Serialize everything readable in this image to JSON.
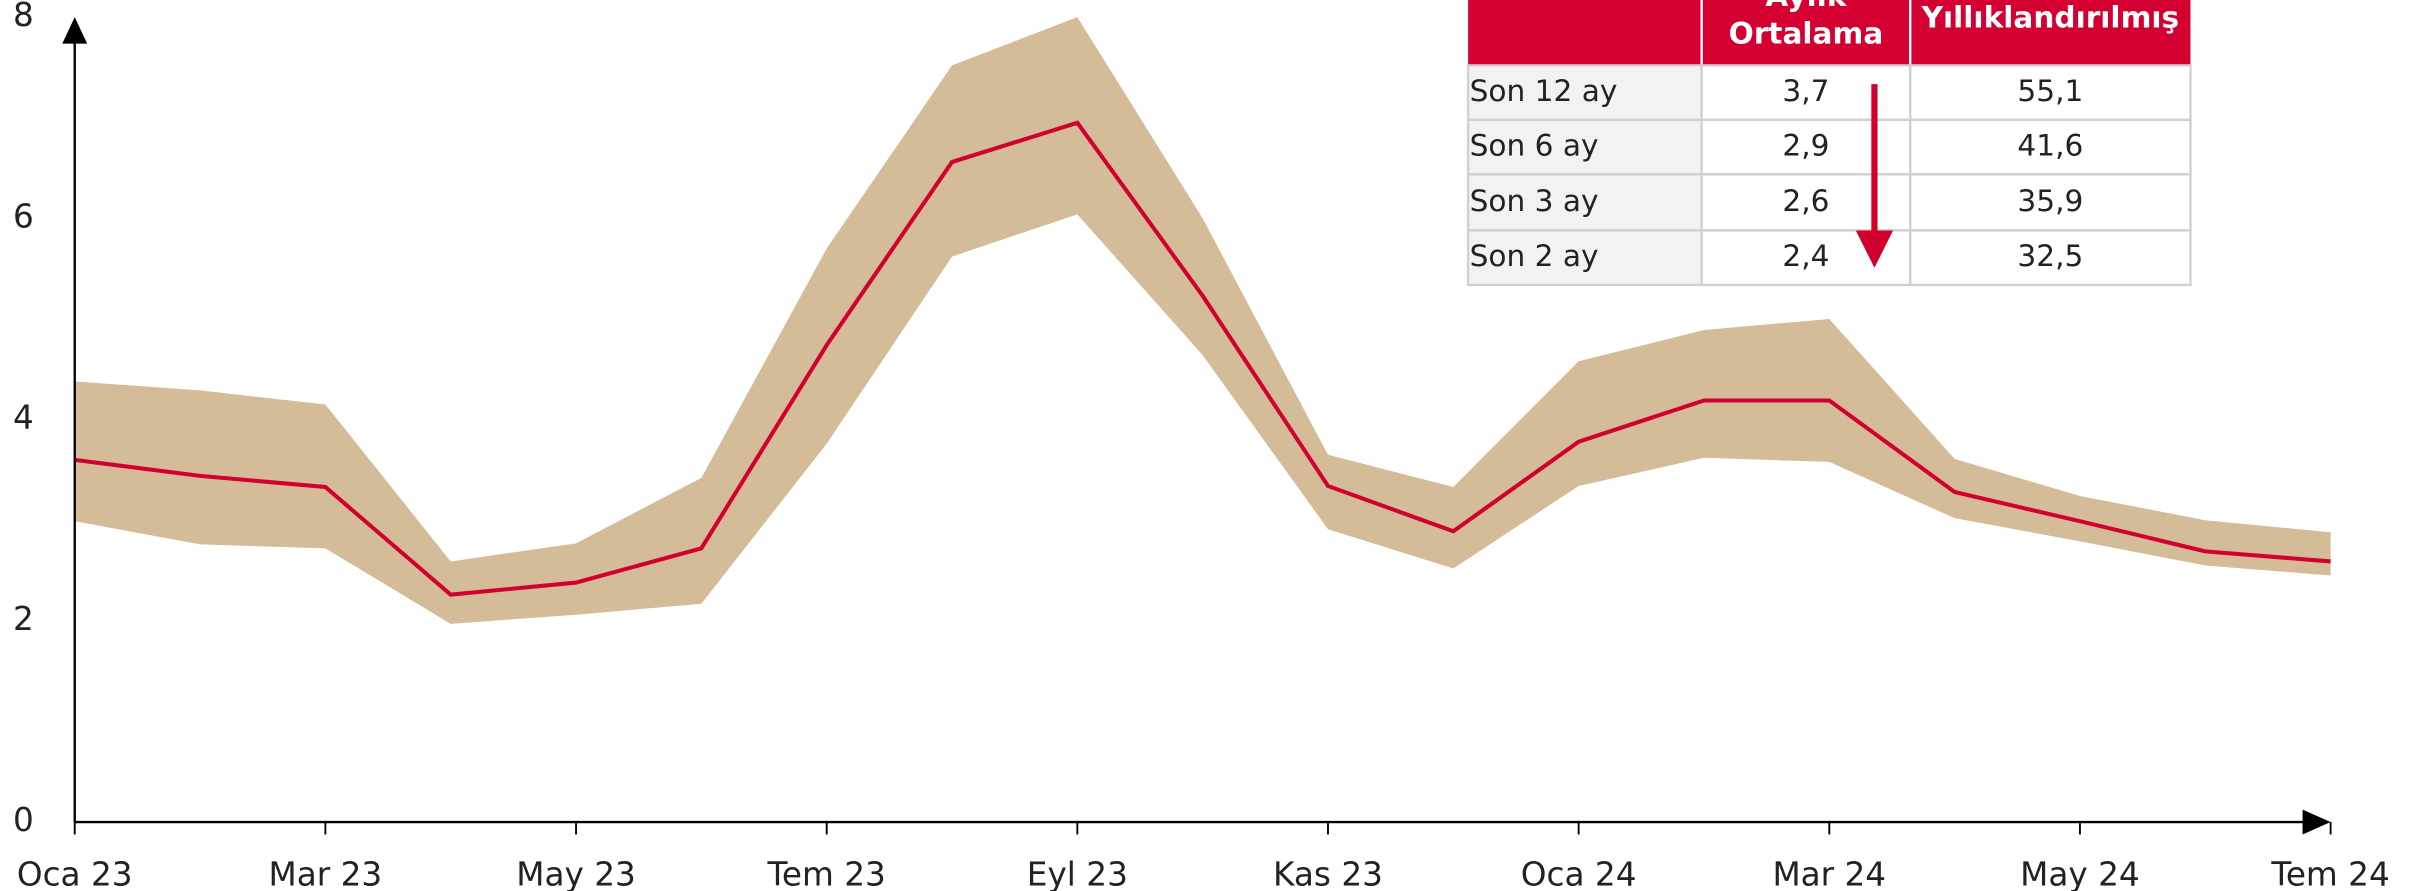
{
  "chart_data": {
    "type": "line",
    "categories": [
      "Oca 23",
      null,
      "Mar 23",
      null,
      "May 23",
      null,
      "Tem 23",
      null,
      "Eyl 23",
      null,
      "Kas 23",
      null,
      "Oca 24",
      null,
      "Mar 24",
      null,
      "May 24",
      null,
      "Tem 24"
    ],
    "line": {
      "color": "#d2002e",
      "values": [
        3.6,
        3.44,
        3.33,
        2.26,
        2.38,
        2.72,
        4.74,
        6.56,
        6.95,
        5.23,
        3.34,
        2.89,
        3.78,
        4.19,
        4.19,
        3.28,
        2.99,
        2.69,
        2.59
      ]
    },
    "band": {
      "color": "#d4bc98",
      "upper": [
        4.38,
        4.29,
        4.15,
        2.59,
        2.77,
        3.42,
        5.7,
        7.52,
        8.0,
        6.0,
        3.65,
        3.33,
        4.58,
        4.89,
        5.0,
        3.61,
        3.24,
        3.0,
        2.88
      ],
      "lower": [
        2.99,
        2.76,
        2.72,
        1.97,
        2.06,
        2.17,
        3.76,
        5.62,
        6.04,
        4.64,
        2.91,
        2.52,
        3.34,
        3.62,
        3.58,
        3.02,
        2.79,
        2.55,
        2.45
      ]
    },
    "ylim": [
      0,
      8
    ],
    "yticks": [
      0,
      2,
      4,
      6,
      8
    ]
  },
  "table": {
    "header_color": "#d40032",
    "header": [
      "Aylık Ortalama",
      "Yıllıklandırılmış"
    ],
    "rows": [
      [
        "Son 12 ay",
        "3,7",
        "55,1"
      ],
      [
        "Son 6 ay",
        "2,9",
        "41,6"
      ],
      [
        "Son 3 ay",
        "2,6",
        "35,9"
      ],
      [
        "Son 2 ay",
        "2,4",
        "32,5"
      ]
    ]
  }
}
